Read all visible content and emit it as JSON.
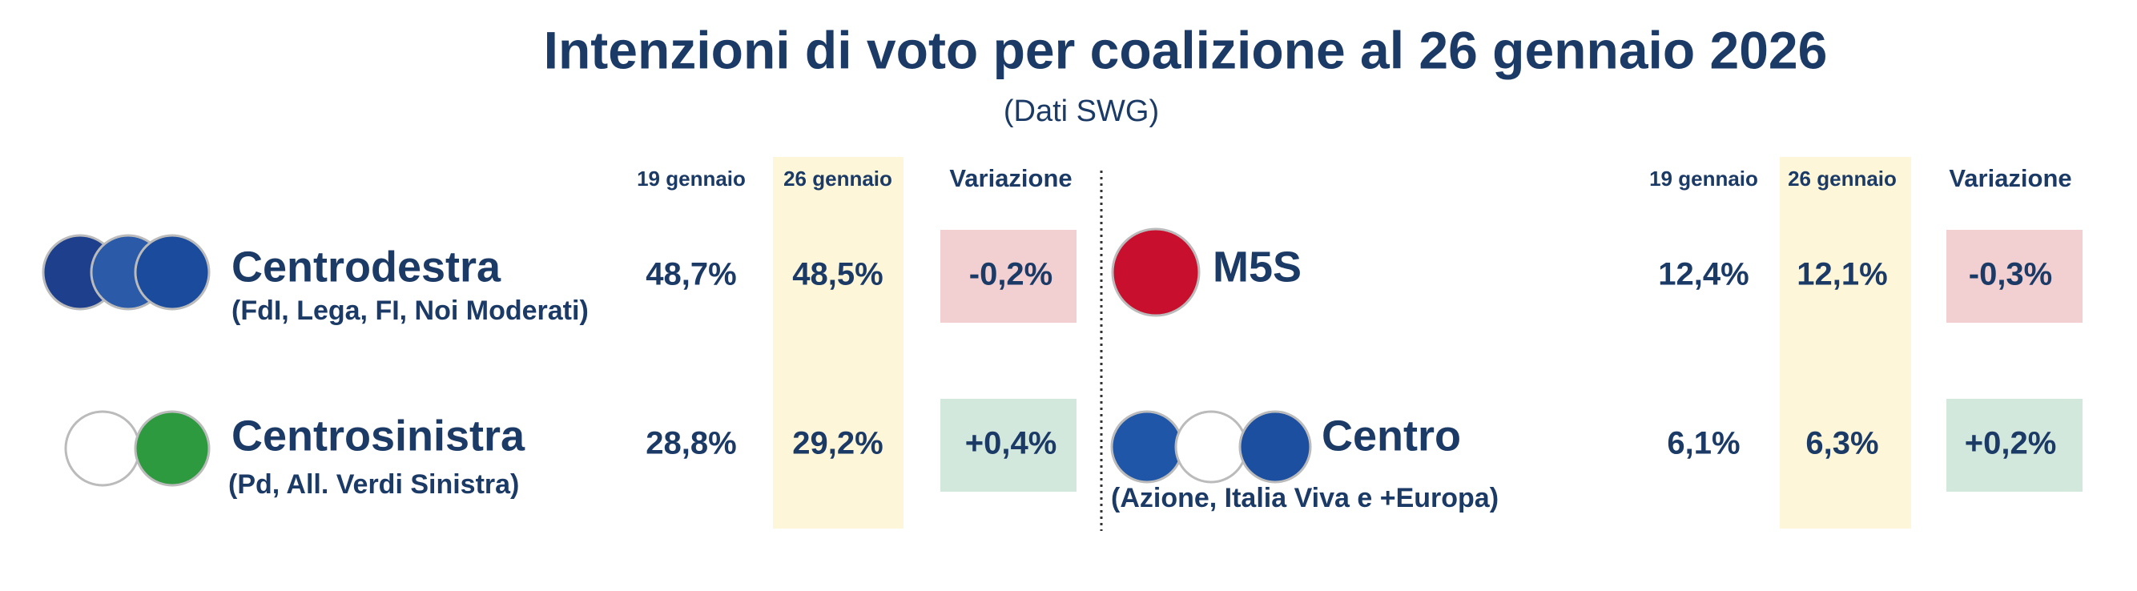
{
  "header": {
    "title": "Intenzioni di voto per coalizione al 26 gennaio 2026",
    "subtitle": "(Dati SWG)"
  },
  "panels": [
    {
      "columns": [
        "19 gennaio",
        "26 gennaio",
        "Variazione"
      ],
      "rows": [
        {
          "name": "Centrodestra",
          "detail": "(FdI, Lega, FI, Noi Moderati)",
          "cells": [
            "48,7%",
            "48,5%",
            "-0,2%"
          ],
          "change_color": "#f2cfd1"
        },
        {
          "name": "Centrosinistra",
          "detail": "(Pd, All. Verdi Sinistra)",
          "cells": [
            "28,8%",
            "29,2%",
            "+0,4%"
          ],
          "change_color": "#d3e8dc"
        }
      ]
    },
    {
      "columns": [
        "19 gennaio",
        "26 gennaio",
        "Variazione"
      ],
      "rows": [
        {
          "name": "M5S",
          "cells": [
            "12,4%",
            "12,1%",
            "-0,3%"
          ],
          "change_color": "#f2cfd1"
        },
        {
          "name": "Centro",
          "detail": "(Azione, Italia Viva e +Europa)",
          "cells": [
            "6,1%",
            "6,3%",
            "+0,2%"
          ],
          "change_color": "#d3e8dc"
        }
      ]
    }
  ]
}
